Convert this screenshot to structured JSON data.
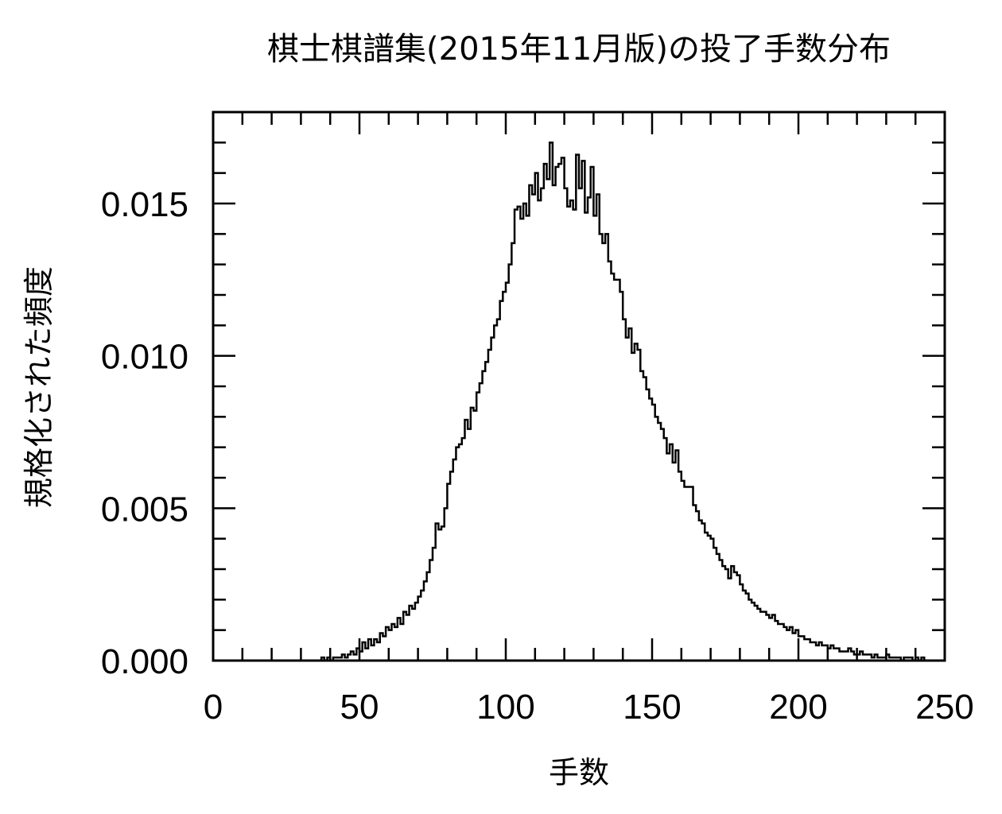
{
  "chart_data": {
    "type": "bar",
    "title": "棋士棋譜集(2015年11月版)の投了手数分布",
    "xlabel": "手数",
    "ylabel": "規格化された頻度",
    "xlim": [
      0,
      250
    ],
    "ylim": [
      0,
      0.018
    ],
    "xticks": [
      "0",
      "50",
      "100",
      "150",
      "200",
      "250"
    ],
    "yticks": [
      "0.000",
      "0.005",
      "0.010",
      "0.015"
    ],
    "style": "step-histogram",
    "bin_width": 1,
    "grid": false,
    "series": [
      {
        "x_start": 30,
        "values": [
          0.0,
          0.0,
          0.0,
          0.0,
          0.0,
          0.0,
          0.0,
          0.0001,
          0.0,
          0.0001,
          0.0,
          0.0001,
          0.0001,
          0.0001,
          0.0002,
          0.0001,
          0.0002,
          0.0003,
          0.0002,
          0.0004,
          0.0003,
          0.0006,
          0.0004,
          0.0007,
          0.0005,
          0.0007,
          0.0006,
          0.0009,
          0.0008,
          0.0011,
          0.001,
          0.0012,
          0.0011,
          0.0014,
          0.0012,
          0.0016,
          0.0015,
          0.0018,
          0.0017,
          0.0019,
          0.0021,
          0.0023,
          0.0026,
          0.0029,
          0.0033,
          0.0037,
          0.0045,
          0.0043,
          0.0044,
          0.005,
          0.0058,
          0.0062,
          0.0066,
          0.007,
          0.0071,
          0.0073,
          0.0079,
          0.0076,
          0.0083,
          0.0082,
          0.0088,
          0.0091,
          0.0095,
          0.0098,
          0.0102,
          0.0106,
          0.011,
          0.0112,
          0.0118,
          0.0121,
          0.0124,
          0.013,
          0.0137,
          0.0148,
          0.0149,
          0.0145,
          0.015,
          0.0146,
          0.0156,
          0.0153,
          0.016,
          0.0151,
          0.0155,
          0.0163,
          0.0158,
          0.017,
          0.0156,
          0.0162,
          0.0163,
          0.0165,
          0.0155,
          0.0149,
          0.0151,
          0.0148,
          0.0166,
          0.0155,
          0.0164,
          0.0147,
          0.0152,
          0.0162,
          0.0146,
          0.0153,
          0.014,
          0.0137,
          0.014,
          0.0131,
          0.0127,
          0.0125,
          0.0125,
          0.0121,
          0.0112,
          0.0106,
          0.0109,
          0.0101,
          0.0104,
          0.0102,
          0.0095,
          0.0093,
          0.0089,
          0.0086,
          0.0084,
          0.008,
          0.0078,
          0.0076,
          0.0073,
          0.0068,
          0.0071,
          0.0065,
          0.0069,
          0.0062,
          0.0059,
          0.0057,
          0.0057,
          0.0057,
          0.0051,
          0.0049,
          0.0046,
          0.0045,
          0.0042,
          0.0041,
          0.004,
          0.0037,
          0.0035,
          0.0033,
          0.0031,
          0.003,
          0.0027,
          0.0031,
          0.0029,
          0.0028,
          0.0025,
          0.0023,
          0.0022,
          0.002,
          0.0019,
          0.0018,
          0.0017,
          0.0016,
          0.0016,
          0.0015,
          0.0014,
          0.0015,
          0.0013,
          0.0012,
          0.0012,
          0.0011,
          0.001,
          0.0011,
          0.0009,
          0.001,
          0.0008,
          0.0008,
          0.0007,
          0.0007,
          0.0006,
          0.0006,
          0.0005,
          0.0006,
          0.0005,
          0.0005,
          0.0004,
          0.0005,
          0.0004,
          0.0004,
          0.0003,
          0.0003,
          0.0003,
          0.0004,
          0.0003,
          0.0002,
          0.0002,
          0.0003,
          0.0002,
          0.0002,
          0.0002,
          0.0001,
          0.0002,
          0.0001,
          0.0001,
          0.0001,
          0.0002,
          0.0001,
          0.0001,
          0.0001,
          0.0001,
          0.0,
          0.0001,
          0.0001,
          0.0001,
          0.0,
          0.0001,
          0.0,
          0.0001,
          0.0,
          0.0,
          0.0,
          0.0,
          0.0
        ]
      }
    ]
  }
}
